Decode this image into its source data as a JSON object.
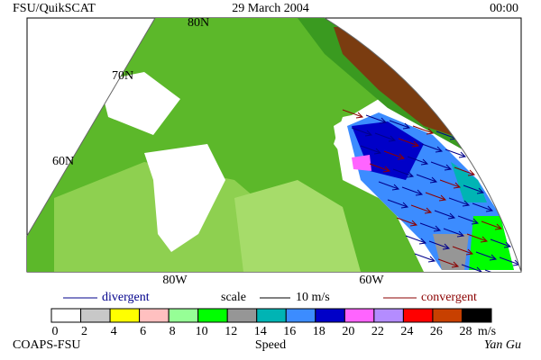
{
  "header": {
    "source": "FSU/QuikSCAT",
    "date": "29 March 2004",
    "time": "00:00"
  },
  "map": {
    "lat_labels": [
      "80N",
      "70N",
      "60N"
    ],
    "lon_labels": [
      "80W",
      "60W"
    ]
  },
  "legend": {
    "divergent": "divergent",
    "scale": "scale",
    "scale_value": "10 m/s",
    "convergent": "convergent",
    "divergent_color": "#00008b",
    "convergent_color": "#8b0000"
  },
  "colorbar": {
    "ticks": [
      "0",
      "2",
      "4",
      "6",
      "8",
      "10",
      "12",
      "14",
      "16",
      "18",
      "20",
      "22",
      "24",
      "26",
      "28"
    ],
    "unit": "m/s",
    "label": "Speed",
    "colors": [
      "#ffffff",
      "#c8c8c8",
      "#ffff00",
      "#ffc0c0",
      "#96ff96",
      "#00ff00",
      "#969696",
      "#00b4b4",
      "#3c8cff",
      "#0000c8",
      "#ff64ff",
      "#b48cff",
      "#ff0000",
      "#c84000",
      "#000000"
    ]
  },
  "footer": {
    "institution": "COAPS-FSU",
    "author": "Yan Gu"
  }
}
